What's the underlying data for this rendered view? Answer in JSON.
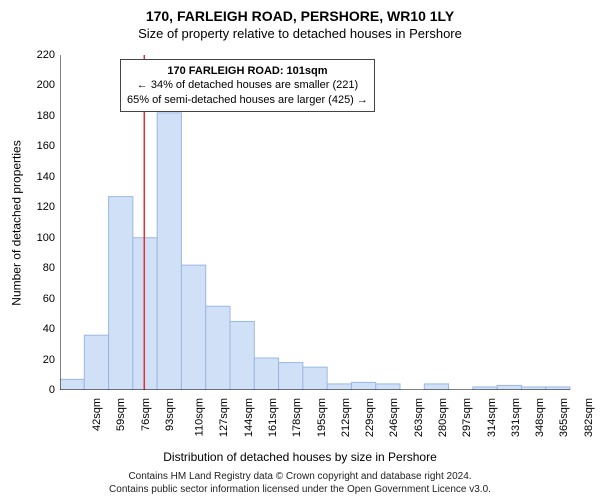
{
  "title": "170, FARLEIGH ROAD, PERSHORE, WR10 1LY",
  "subtitle": "Size of property relative to detached houses in Pershore",
  "ylabel": "Number of detached properties",
  "xlabel": "Distribution of detached houses by size in Pershore",
  "footer_line1": "Contains HM Land Registry data © Crown copyright and database right 2024.",
  "footer_line2": "Contains public sector information licensed under the Open Government Licence v3.0.",
  "chart": {
    "type": "histogram",
    "background_color": "#ffffff",
    "axis_color": "#000000",
    "bar_fill": "#cfe0f7",
    "bar_stroke": "#9bb8e3",
    "bar_stroke_width": 1,
    "indicator_color": "#e03030",
    "indicator_x_value": 101,
    "ylim": [
      0,
      220
    ],
    "ytick_step": 20,
    "x_start": 42,
    "x_step": 17,
    "x_unit": "sqm",
    "x_tick_count": 21,
    "values": [
      7,
      36,
      127,
      100,
      182,
      82,
      55,
      45,
      21,
      18,
      15,
      4,
      5,
      4,
      0,
      4,
      0,
      2,
      3,
      2,
      2
    ],
    "tick_font_size": 11,
    "label_font_size": 12,
    "title_font_size": 14
  },
  "annotation": {
    "line1": "170 FARLEIGH ROAD: 101sqm",
    "line2": "← 34% of detached houses are smaller (221)",
    "line3": "65% of semi-detached houses are larger (425) →",
    "border_color": "#444444",
    "background": "#ffffff"
  }
}
